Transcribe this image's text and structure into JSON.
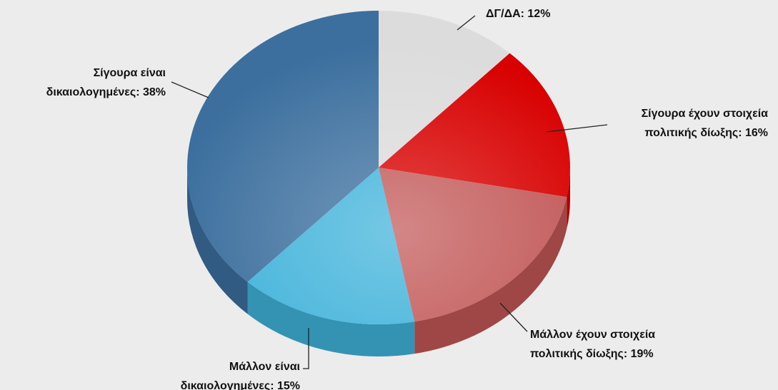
{
  "chart_data": {
    "type": "pie",
    "values": [
      12,
      16,
      19,
      15,
      38
    ],
    "value_labels": [
      [
        "ΔΓ/ΔΑ: 12%"
      ],
      [
        "Σίγουρα έχουν στοιχεία",
        "πολιτικής δίωξης: 16%"
      ],
      [
        "Μάλλον έχουν στοιχεία",
        "πολιτικής δίωξης: 19%"
      ],
      [
        "Μάλλον είναι",
        "δικαιολογημένες: 15%"
      ],
      [
        "Σίγουρα είναι",
        "δικαιολογημένες: 38%"
      ]
    ],
    "colors": [
      "#dcdcdc",
      "#d80000",
      "#c25757",
      "#3fb2da",
      "#3c6f9e"
    ]
  }
}
